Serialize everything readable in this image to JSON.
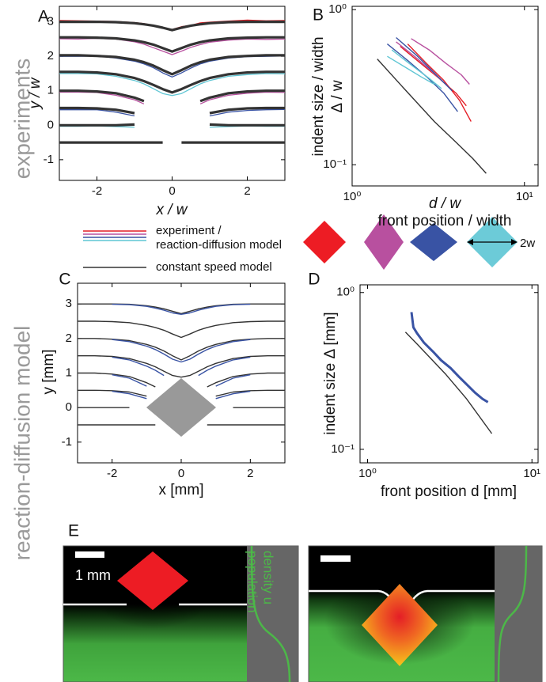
{
  "side_labels": {
    "top": "experiments",
    "bottom": "reaction-diffusion model"
  },
  "chart_data": [
    {
      "type": "line",
      "panel_label": "A",
      "ylabel": "y / w",
      "xlabel": "x / w",
      "xlim": [
        -3,
        3
      ],
      "ylim": [
        -1.6,
        3.45
      ],
      "xticks": [
        -2,
        0,
        2
      ],
      "yticks": [
        -1,
        0,
        1,
        2,
        3
      ],
      "x": [
        -3,
        -2.5,
        -2,
        -1.5,
        -1,
        -0.75,
        -0.5,
        -0.25,
        0,
        0.25,
        0.5,
        0.75,
        1,
        1.5,
        2,
        2.5,
        3
      ],
      "series": [
        {
          "color": "#e41e26",
          "values": [
            3.04,
            3.03,
            3.02,
            3.01,
            2.98,
            2.95,
            2.9,
            2.84,
            2.78,
            2.86,
            2.9,
            2.97,
            2.99,
            3.02,
            3.05,
            3.03,
            3.04
          ]
        },
        {
          "color": "#b8509f",
          "values": [
            2.51,
            2.5,
            2.52,
            2.5,
            2.42,
            2.35,
            2.25,
            2.15,
            2.05,
            2.15,
            2.26,
            2.34,
            2.41,
            2.47,
            2.5,
            2.49,
            2.5
          ]
        },
        {
          "color": "#3953a4",
          "values": [
            2,
            2,
            2.01,
            1.95,
            1.86,
            1.78,
            1.67,
            1.52,
            1.4,
            1.52,
            1.66,
            1.78,
            1.86,
            1.95,
            1.99,
            2,
            2.01
          ]
        },
        {
          "color": "#5fc6d4",
          "values": [
            1.5,
            1.5,
            1.49,
            1.42,
            1.3,
            1.2,
            1.06,
            0.92,
            0.86,
            0.92,
            1.06,
            1.2,
            1.3,
            1.42,
            1.47,
            1.5,
            1.49
          ]
        },
        {
          "color": "#b8509f",
          "values": [
            0.96,
            0.96,
            0.95,
            0.87,
            0.74,
            0.62,
            null,
            null,
            null,
            null,
            null,
            0.62,
            0.74,
            0.87,
            0.93,
            0.96,
            0.95
          ]
        },
        {
          "color": "#3953a4",
          "values": [
            0.45,
            0.45,
            0.45,
            0.38,
            0.27,
            null,
            null,
            null,
            null,
            null,
            null,
            null,
            0.27,
            0.38,
            0.43,
            0.45,
            0.46
          ]
        },
        {
          "color": "#5fc6d4",
          "values": [
            -0.03,
            -0.03,
            -0.02,
            -0.04,
            -0.06,
            null,
            null,
            null,
            null,
            null,
            null,
            null,
            -0.06,
            -0.04,
            -0.02,
            -0.03,
            -0.03
          ]
        },
        {
          "color": "#333333",
          "values": [
            3,
            3,
            3,
            2.99,
            2.96,
            2.93,
            2.89,
            2.83,
            2.76,
            2.83,
            2.89,
            2.93,
            2.96,
            2.99,
            3,
            3,
            3
          ]
        },
        {
          "color": "#333333",
          "values": [
            2.55,
            2.55,
            2.54,
            2.52,
            2.46,
            2.41,
            2.34,
            2.24,
            2.14,
            2.24,
            2.34,
            2.41,
            2.46,
            2.52,
            2.54,
            2.55,
            2.55
          ]
        },
        {
          "color": "#333333",
          "values": [
            2.03,
            2.03,
            2.01,
            1.98,
            1.9,
            1.83,
            1.73,
            1.6,
            1.48,
            1.6,
            1.73,
            1.83,
            1.9,
            1.98,
            2.01,
            2.03,
            2.03
          ]
        },
        {
          "color": "#333333",
          "values": [
            1.55,
            1.55,
            1.53,
            1.48,
            1.37,
            1.28,
            1.17,
            1.05,
            0.95,
            1.05,
            1.17,
            1.28,
            1.37,
            1.48,
            1.53,
            1.55,
            1.55
          ]
        },
        {
          "color": "#333333",
          "values": [
            1,
            1,
            0.98,
            0.93,
            0.8,
            0.7,
            null,
            null,
            null,
            null,
            null,
            0.7,
            0.8,
            0.93,
            0.98,
            1,
            1
          ]
        },
        {
          "color": "#333333",
          "values": [
            0.5,
            0.5,
            0.49,
            0.45,
            0.35,
            null,
            null,
            null,
            null,
            null,
            null,
            null,
            0.35,
            0.45,
            0.49,
            0.5,
            0.5
          ]
        },
        {
          "color": "#333333",
          "values": [
            0,
            0,
            0,
            0,
            0.02,
            null,
            null,
            null,
            null,
            null,
            null,
            null,
            0.02,
            0,
            0,
            0,
            0
          ]
        },
        {
          "color": "#333333",
          "values": [
            -0.5,
            -0.5,
            -0.5,
            -0.5,
            -0.5,
            -0.5,
            -0.5,
            -0.5,
            null,
            -0.5,
            -0.5,
            -0.5,
            -0.5,
            -0.5,
            -0.5,
            -0.5,
            -0.5
          ]
        }
      ]
    },
    {
      "type": "line",
      "panel_label": "B",
      "ylabel": [
        "indent size / width",
        "Δ / w"
      ],
      "xlabel": [
        "d / w",
        "front position / width"
      ],
      "xlog": true,
      "ylog": true,
      "xlim": [
        1,
        12
      ],
      "ylim": [
        0.073,
        1.05
      ],
      "xticks": [
        {
          "value": 1,
          "label": "10⁰"
        },
        {
          "value": 10,
          "label": "10¹"
        }
      ],
      "yticks": [
        {
          "value": 0.1,
          "label": "10⁻¹"
        },
        {
          "value": 1,
          "label": "10⁰"
        }
      ],
      "series": [
        {
          "color": "#e41e26",
          "x": [
            2.1,
            2.7,
            3.4,
            4.2,
            4.9
          ],
          "values": [
            0.6,
            0.45,
            0.35,
            0.26,
            0.19
          ]
        },
        {
          "color": "#e41e26",
          "x": [
            1.9,
            2.5,
            3.2,
            4.0,
            4.6
          ],
          "values": [
            0.58,
            0.45,
            0.36,
            0.29,
            0.24
          ]
        },
        {
          "color": "#b8509f",
          "x": [
            2.2,
            2.8,
            3.5,
            4.3,
            4.8
          ],
          "values": [
            0.65,
            0.55,
            0.45,
            0.38,
            0.33
          ]
        },
        {
          "color": "#b8509f",
          "x": [
            1.8,
            2.3,
            2.9,
            3.6
          ],
          "values": [
            0.62,
            0.5,
            0.4,
            0.32
          ]
        },
        {
          "color": "#3953a4",
          "x": [
            1.6,
            2.1,
            2.7,
            3.4,
            4.1
          ],
          "values": [
            0.6,
            0.47,
            0.37,
            0.29,
            0.22
          ]
        },
        {
          "color": "#3953a4",
          "x": [
            1.8,
            2.4,
            3.0,
            3.8
          ],
          "values": [
            0.66,
            0.5,
            0.39,
            0.3
          ]
        },
        {
          "color": "#5fc6d4",
          "x": [
            1.7,
            2.2,
            2.8,
            3.3
          ],
          "values": [
            0.55,
            0.44,
            0.36,
            0.31
          ]
        },
        {
          "color": "#5fc6d4",
          "x": [
            1.6,
            2.0,
            2.5,
            3.0
          ],
          "values": [
            0.5,
            0.43,
            0.37,
            0.33
          ]
        },
        {
          "color": "#333333",
          "x": [
            1.4,
            2,
            3,
            4,
            5,
            6
          ],
          "values": [
            0.48,
            0.31,
            0.19,
            0.14,
            0.11,
            0.088
          ]
        }
      ]
    },
    {
      "type": "line",
      "panel_label": "C",
      "ylabel": "y [mm]",
      "xlabel": "x [mm]",
      "xlim": [
        -3,
        3
      ],
      "ylim": [
        -1.6,
        3.6
      ],
      "xticks": [
        -2,
        0,
        2
      ],
      "yticks": [
        -1,
        0,
        1,
        2,
        3
      ],
      "x": [
        -3,
        -2.5,
        -2,
        -1.5,
        -1,
        -0.75,
        -0.5,
        -0.25,
        0,
        0.25,
        0.5,
        0.75,
        1,
        1.5,
        2,
        2.5,
        3
      ],
      "series": [
        {
          "color": "#333333",
          "values": [
            3,
            3,
            3,
            2.99,
            2.95,
            2.91,
            2.86,
            2.79,
            2.72,
            2.79,
            2.86,
            2.91,
            2.95,
            2.99,
            3,
            3,
            3
          ]
        },
        {
          "color": "#333333",
          "values": [
            2.5,
            2.5,
            2.49,
            2.46,
            2.38,
            2.32,
            2.24,
            2.13,
            2.03,
            2.13,
            2.24,
            2.32,
            2.38,
            2.46,
            2.49,
            2.5,
            2.5
          ]
        },
        {
          "color": "#333333",
          "values": [
            2,
            2,
            1.98,
            1.94,
            1.83,
            1.75,
            1.64,
            1.5,
            1.38,
            1.5,
            1.64,
            1.75,
            1.83,
            1.94,
            1.98,
            2,
            2
          ]
        },
        {
          "color": "#333333",
          "values": [
            1.5,
            1.5,
            1.48,
            1.42,
            1.28,
            1.18,
            1.05,
            0.93,
            0.88,
            0.93,
            1.05,
            1.18,
            1.28,
            1.42,
            1.48,
            1.5,
            1.5
          ]
        },
        {
          "color": "#333333",
          "values": [
            1,
            1,
            0.97,
            0.9,
            0.72,
            0.6,
            null,
            null,
            null,
            null,
            null,
            0.6,
            0.72,
            0.9,
            0.97,
            1,
            1
          ]
        },
        {
          "color": "#333333",
          "values": [
            0.5,
            0.5,
            0.49,
            0.45,
            0.33,
            null,
            null,
            null,
            null,
            null,
            null,
            null,
            0.33,
            0.45,
            0.49,
            0.5,
            0.5
          ]
        },
        {
          "color": "#333333",
          "values": [
            0,
            0,
            0,
            0,
            null,
            null,
            null,
            null,
            null,
            null,
            null,
            null,
            null,
            0,
            0,
            0,
            0
          ]
        },
        {
          "color": "#333333",
          "values": [
            -0.5,
            -0.5,
            -0.5,
            -0.5,
            -0.5,
            -0.5,
            null,
            null,
            null,
            null,
            null,
            -0.5,
            -0.5,
            -0.5,
            -0.5,
            -0.5,
            -0.5
          ]
        },
        {
          "color": "#3953a4",
          "values": [
            null,
            null,
            2.99,
            2.98,
            2.93,
            2.88,
            2.82,
            2.74,
            2.7,
            2.74,
            2.82,
            2.88,
            2.93,
            2.98,
            2.99,
            null,
            null
          ]
        },
        {
          "color": "#3953a4",
          "values": [
            null,
            null,
            1.97,
            1.91,
            1.78,
            1.68,
            1.55,
            1.4,
            1.32,
            1.4,
            1.55,
            1.68,
            1.78,
            1.91,
            1.97,
            null,
            null
          ]
        },
        {
          "color": "#3953a4",
          "values": [
            null,
            null,
            1.46,
            1.38,
            1.2,
            1.08,
            0.93,
            null,
            null,
            null,
            0.93,
            1.08,
            1.2,
            1.38,
            1.46,
            null,
            null
          ]
        },
        {
          "color": "#3953a4",
          "values": [
            null,
            null,
            0.95,
            0.85,
            0.62,
            null,
            null,
            null,
            null,
            null,
            null,
            null,
            0.62,
            0.85,
            0.95,
            null,
            null
          ]
        },
        {
          "color": "#3953a4",
          "values": [
            null,
            null,
            0.47,
            0.4,
            0.26,
            null,
            null,
            null,
            null,
            null,
            null,
            null,
            0.26,
            0.4,
            0.47,
            null,
            null
          ]
        }
      ]
    },
    {
      "type": "line",
      "panel_label": "D",
      "ylabel": "indent size Δ [mm]",
      "xlabel": "front position d [mm]",
      "xlog": true,
      "ylog": true,
      "xlim": [
        0.9,
        10.9
      ],
      "ylim": [
        0.082,
        1.12
      ],
      "xticks": [
        {
          "value": 1,
          "label": "10⁰"
        },
        {
          "value": 10,
          "label": "10¹"
        }
      ],
      "yticks": [
        {
          "value": 0.1,
          "label": "10⁻¹"
        },
        {
          "value": 1,
          "label": "10⁰"
        }
      ],
      "series": [
        {
          "color": "#333333",
          "x": [
            1.7,
            2,
            3,
            4,
            5.7
          ],
          "values": [
            0.56,
            0.47,
            0.3,
            0.21,
            0.126
          ]
        },
        {
          "color": "#3953a4",
          "x": [
            1.85,
            1.9,
            2.0,
            2.2,
            2.5,
            2.8,
            3.2,
            3.6,
            4.0,
            4.5,
            5.0,
            5.4
          ],
          "values": [
            0.75,
            0.6,
            0.55,
            0.48,
            0.42,
            0.37,
            0.33,
            0.29,
            0.26,
            0.23,
            0.21,
            0.2
          ]
        }
      ]
    }
  ],
  "legend": {
    "experiment_lines": [
      "experiment /",
      "reaction-diffusion model"
    ],
    "experiment_colors": [
      "#e41e26",
      "#b8509f",
      "#3953a4",
      "#5fc6d4"
    ],
    "model_label": "constant speed model",
    "model_color": "#333333",
    "diamond_colors": [
      "#ed1c24",
      "#b8509f",
      "#3953a4",
      "#6ccbd8"
    ],
    "width_label": "2w"
  },
  "panel_e": {
    "panel_label": "E",
    "scale_label": "1 mm",
    "density_label": [
      "population",
      "density u"
    ]
  }
}
